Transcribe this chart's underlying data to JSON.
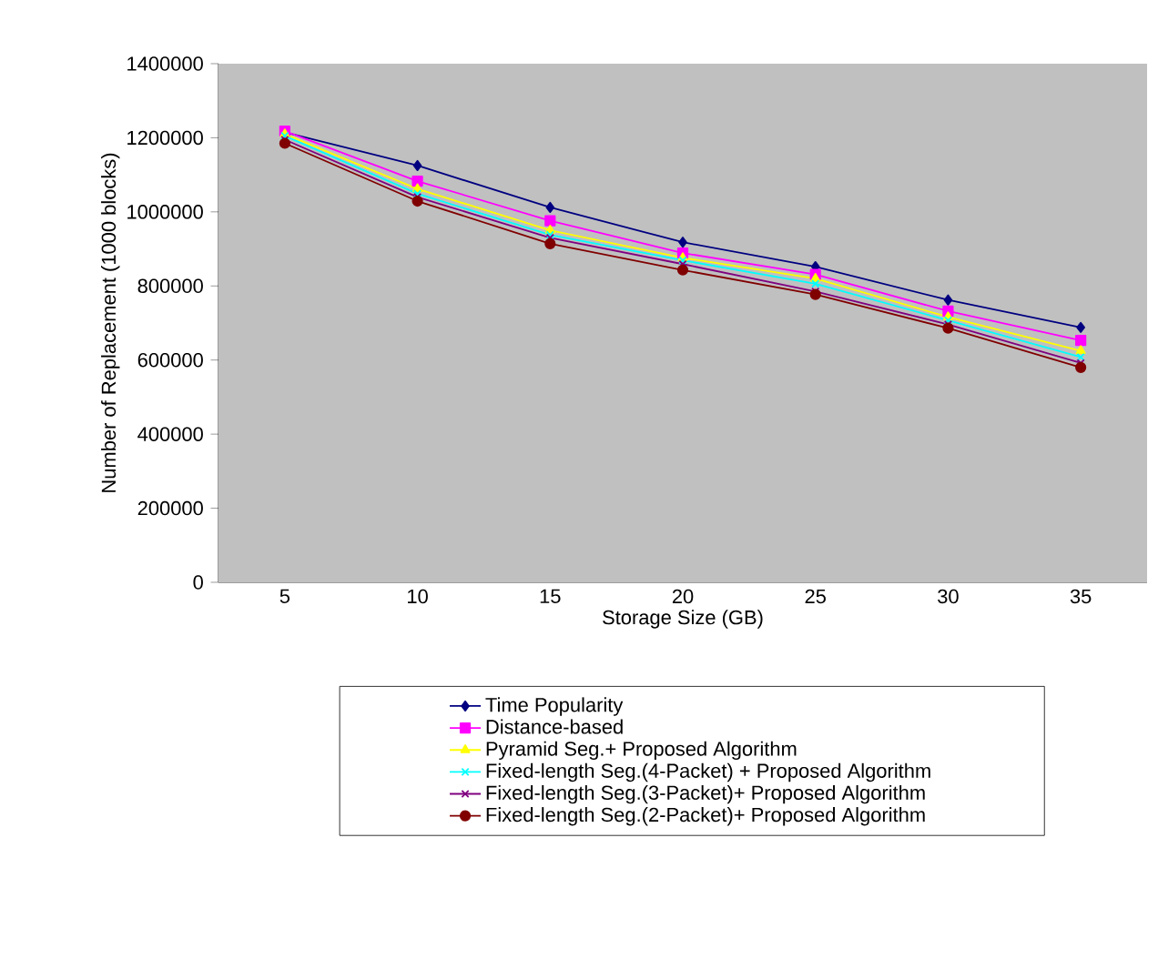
{
  "chart_data": {
    "type": "line",
    "xlabel": "Storage Size (GB)",
    "ylabel": "Number of Replacement (1000 blocks)",
    "categories": [
      "5",
      "10",
      "15",
      "20",
      "25",
      "30",
      "35"
    ],
    "ylim": [
      0,
      1400000
    ],
    "yticks": [
      0,
      200000,
      400000,
      600000,
      800000,
      1000000,
      1200000,
      1400000
    ],
    "grid": false,
    "legend": "bottom",
    "series": [
      {
        "name": "Time Popularity",
        "color": "#000080",
        "marker": "diamond",
        "values": [
          1215000,
          1125000,
          1012000,
          918000,
          852000,
          762000,
          688000
        ]
      },
      {
        "name": "Distance-based",
        "color": "#ff00ff",
        "marker": "square",
        "values": [
          1218000,
          1083000,
          976000,
          889000,
          831000,
          732000,
          653000
        ]
      },
      {
        "name": "Pyramid Seg.+ Proposed Algorithm",
        "color": "#ffff00",
        "marker": "triangle",
        "values": [
          1210000,
          1062000,
          950000,
          876000,
          820000,
          716000,
          625000
        ]
      },
      {
        "name": "Fixed-length Seg.(4-Packet) + Proposed Algorithm",
        "color": "#00ffff",
        "marker": "cross",
        "values": [
          1205000,
          1049000,
          938000,
          869000,
          806000,
          707000,
          608000
        ]
      },
      {
        "name": "Fixed-length Seg.(3-Packet)+ Proposed Algorithm",
        "color": "#800080",
        "marker": "cross",
        "values": [
          1195000,
          1040000,
          930000,
          859000,
          785000,
          696000,
          592000
        ]
      },
      {
        "name": "Fixed-length Seg.(2-Packet)+ Proposed Algorithm",
        "color": "#800000",
        "marker": "circle",
        "values": [
          1185000,
          1029000,
          914000,
          843000,
          777000,
          686000,
          580000
        ]
      }
    ]
  }
}
